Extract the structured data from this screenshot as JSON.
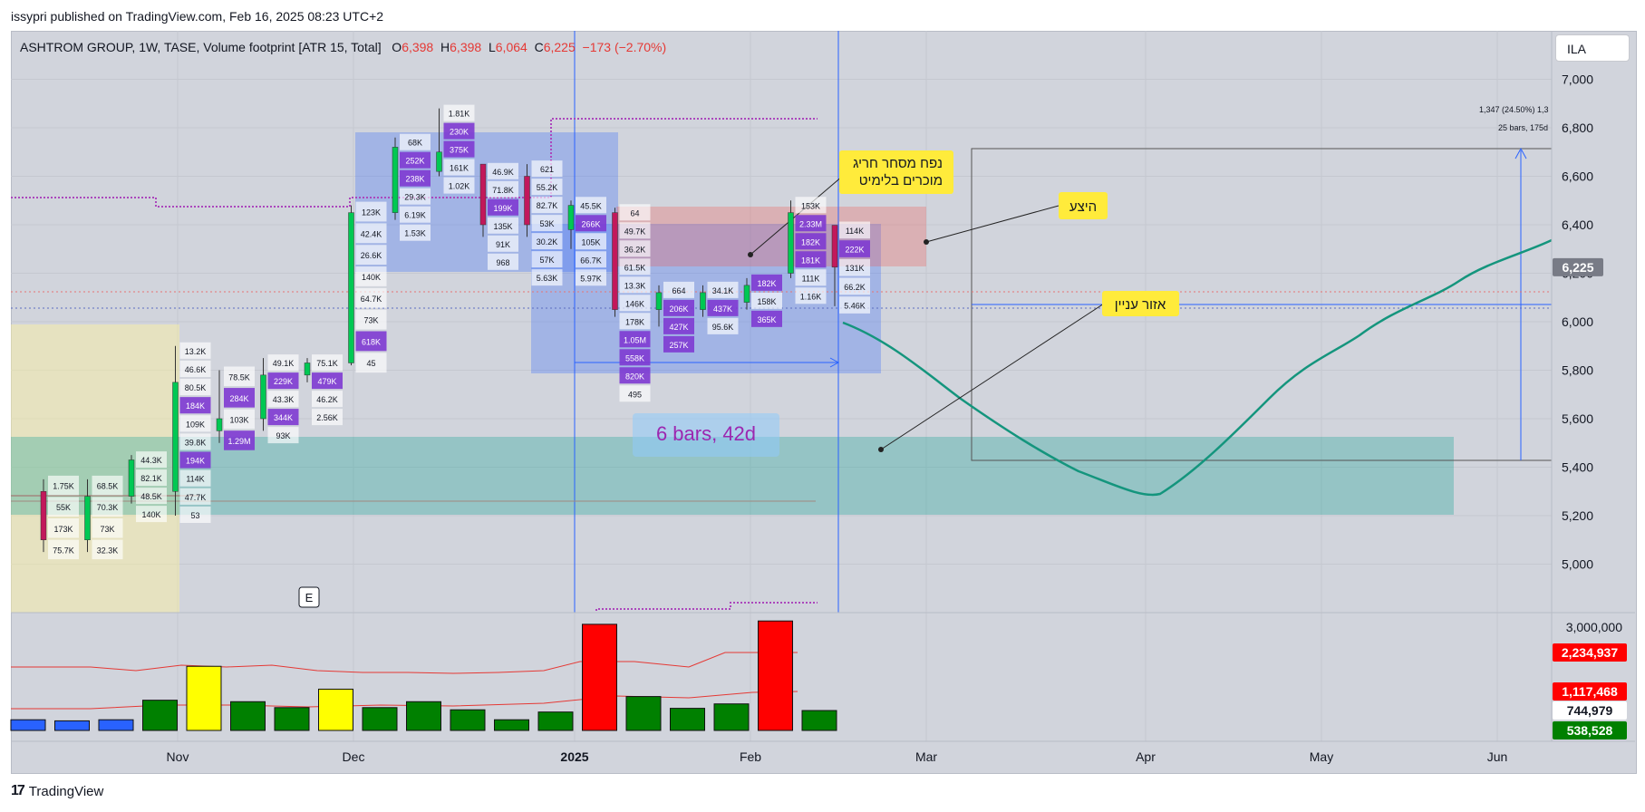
{
  "header": {
    "published": "issypri published on TradingView.com, Feb 16, 2025 08:23 UTC+2"
  },
  "legend": {
    "symbol": "ASHTROM GROUP, 1W, TASE, Volume footprint [ATR 15, Total]",
    "o_label": "O",
    "o": "6,398",
    "h_label": "H",
    "h": "6,398",
    "l_label": "L",
    "l": "6,064",
    "c_label": "C",
    "c": "6,225",
    "change": "−173 (−2.70%)"
  },
  "currency_button": "ILA",
  "brand": {
    "name": "TradingView"
  },
  "colors": {
    "bg": "#d1d4dc",
    "up": "#00c853",
    "down": "#e53935",
    "ma": "#14957d",
    "blue_line": "#2962ff",
    "note_bg": "#ffeb3b"
  },
  "chart_data": {
    "type": "bar",
    "title": "ASHTROM GROUP, 1W, TASE",
    "ylim": [
      4800,
      7200
    ],
    "y_ticks": [
      "7,000",
      "6,800",
      "6,600",
      "6,400",
      "6,200",
      "6,000",
      "5,800",
      "5,600",
      "5,400",
      "5,200",
      "5,000"
    ],
    "y_tick_values": [
      7000,
      6800,
      6600,
      6400,
      6200,
      6000,
      5800,
      5600,
      5400,
      5200,
      5000
    ],
    "x_ticks": [
      "Nov",
      "Dec",
      "2025",
      "Feb",
      "Mar",
      "Apr",
      "May",
      "Jun"
    ],
    "last_price_label": "6,225",
    "last_price": 6225,
    "candles": [
      {
        "o": 5300,
        "h": 5350,
        "l": 5050,
        "c": 5100
      },
      {
        "o": 5100,
        "h": 5350,
        "l": 5050,
        "c": 5280
      },
      {
        "o": 5280,
        "h": 5450,
        "l": 5250,
        "c": 5430
      },
      {
        "o": 5300,
        "h": 5900,
        "l": 5200,
        "c": 5750
      },
      {
        "o": 5550,
        "h": 5800,
        "l": 5500,
        "c": 5600
      },
      {
        "o": 5600,
        "h": 5850,
        "l": 5550,
        "c": 5780
      },
      {
        "o": 5780,
        "h": 5850,
        "l": 5750,
        "c": 5830
      },
      {
        "o": 5830,
        "h": 6480,
        "l": 5820,
        "c": 6450
      },
      {
        "o": 6450,
        "h": 6760,
        "l": 6420,
        "c": 6720
      },
      {
        "o": 6620,
        "h": 6880,
        "l": 6600,
        "c": 6700
      },
      {
        "o": 6650,
        "h": 6640,
        "l": 6350,
        "c": 6400
      },
      {
        "o": 6600,
        "h": 6650,
        "l": 6350,
        "c": 6400
      },
      {
        "o": 6380,
        "h": 6500,
        "l": 6300,
        "c": 6480
      },
      {
        "o": 6450,
        "h": 6470,
        "l": 6020,
        "c": 6050
      },
      {
        "o": 6050,
        "h": 6150,
        "l": 5980,
        "c": 6120
      },
      {
        "o": 6050,
        "h": 6150,
        "l": 6020,
        "c": 6120
      },
      {
        "o": 6080,
        "h": 6180,
        "l": 6050,
        "c": 6150
      },
      {
        "o": 6200,
        "h": 6500,
        "l": 6180,
        "c": 6450
      },
      {
        "o": 6398,
        "h": 6398,
        "l": 6064,
        "c": 6225
      }
    ],
    "footprint_labels": [
      {
        "bar": 0,
        "vals": [
          "1.75K",
          "55K",
          "173K",
          "75.7K"
        ]
      },
      {
        "bar": 1,
        "vals": [
          "68.5K",
          "70.3K",
          "73K",
          "32.3K"
        ]
      },
      {
        "bar": 2,
        "vals": [
          "44.3K",
          "82.1K",
          "48.5K",
          "140K"
        ]
      },
      {
        "bar": 3,
        "vals": [
          "13.2K",
          "46.6K",
          "80.5K",
          "184K",
          "109K",
          "39.8K",
          "194K",
          "114K",
          "47.7K",
          "53"
        ]
      },
      {
        "bar": 4,
        "vals": [
          "78.5K",
          "284K",
          "103K",
          "1.29M"
        ]
      },
      {
        "bar": 5,
        "vals": [
          "49.1K",
          "229K",
          "43.3K",
          "344K",
          "93K"
        ]
      },
      {
        "bar": 6,
        "vals": [
          "75.1K",
          "479K",
          "46.2K",
          "2.56K"
        ]
      },
      {
        "bar": 7,
        "vals": [
          "123K",
          "42.4K",
          "26.6K",
          "140K",
          "64.7K",
          "73K",
          "618K",
          "45"
        ]
      },
      {
        "bar": 8,
        "vals": [
          "68K",
          "252K",
          "238K",
          "29.3K",
          "6.19K",
          "1.53K"
        ]
      },
      {
        "bar": 9,
        "vals": [
          "1.81K",
          "230K",
          "375K",
          "161K",
          "1.02K"
        ]
      },
      {
        "bar": 10,
        "vals": [
          "46.9K",
          "71.8K",
          "199K",
          "135K",
          "91K",
          "968"
        ]
      },
      {
        "bar": 11,
        "vals": [
          "621",
          "55.2K",
          "82.7K",
          "53K",
          "30.2K",
          "57K",
          "5.63K"
        ]
      },
      {
        "bar": 12,
        "vals": [
          "45.5K",
          "266K",
          "105K",
          "66.7K",
          "5.97K"
        ]
      },
      {
        "bar": 13,
        "vals": [
          "64",
          "49.7K",
          "36.2K",
          "61.5K",
          "13.3K",
          "146K",
          "178K",
          "1.05M",
          "558K",
          "820K",
          "495"
        ]
      },
      {
        "bar": 14,
        "vals": [
          "664",
          "206K",
          "427K",
          "257K"
        ]
      },
      {
        "bar": 15,
        "vals": [
          "34.1K",
          "437K",
          "95.6K"
        ]
      },
      {
        "bar": 16,
        "vals": [
          "182K",
          "158K",
          "365K"
        ]
      },
      {
        "bar": 17,
        "vals": [
          "153K",
          "2.33M",
          "182K",
          "181K",
          "111K",
          "1.16K"
        ]
      },
      {
        "bar": 18,
        "vals": [
          "114K",
          "222K",
          "131K",
          "66.2K",
          "5.46K"
        ]
      }
    ],
    "annotations": {
      "note_thick": "נפח מסחר חריג\nמוכרים בלימיט",
      "note_supply": "היצע",
      "note_interest": "אזור עניין",
      "range_label": "6 bars, 42d",
      "measure_top": "1,347 (24.50%) 1,3",
      "measure_bottom": "25 bars, 175d",
      "event_marker": "E"
    },
    "volume": {
      "y_tick": "3,000,000",
      "labels": [
        "2,234,937",
        "1,117,468",
        "744,979",
        "538,528"
      ],
      "ylim": [
        0,
        3000000
      ],
      "values": [
        290000,
        260000,
        290000,
        820000,
        1740000,
        780000,
        620000,
        1120000,
        620000,
        780000,
        560000,
        290000,
        500000,
        2880000,
        920000,
        600000,
        720000,
        2970000,
        540000
      ],
      "colors": [
        "blue",
        "blue",
        "blue",
        "green",
        "yellow",
        "green",
        "green",
        "yellow",
        "green",
        "green",
        "green",
        "green",
        "green",
        "red",
        "green",
        "green",
        "green",
        "red",
        "green"
      ]
    }
  }
}
